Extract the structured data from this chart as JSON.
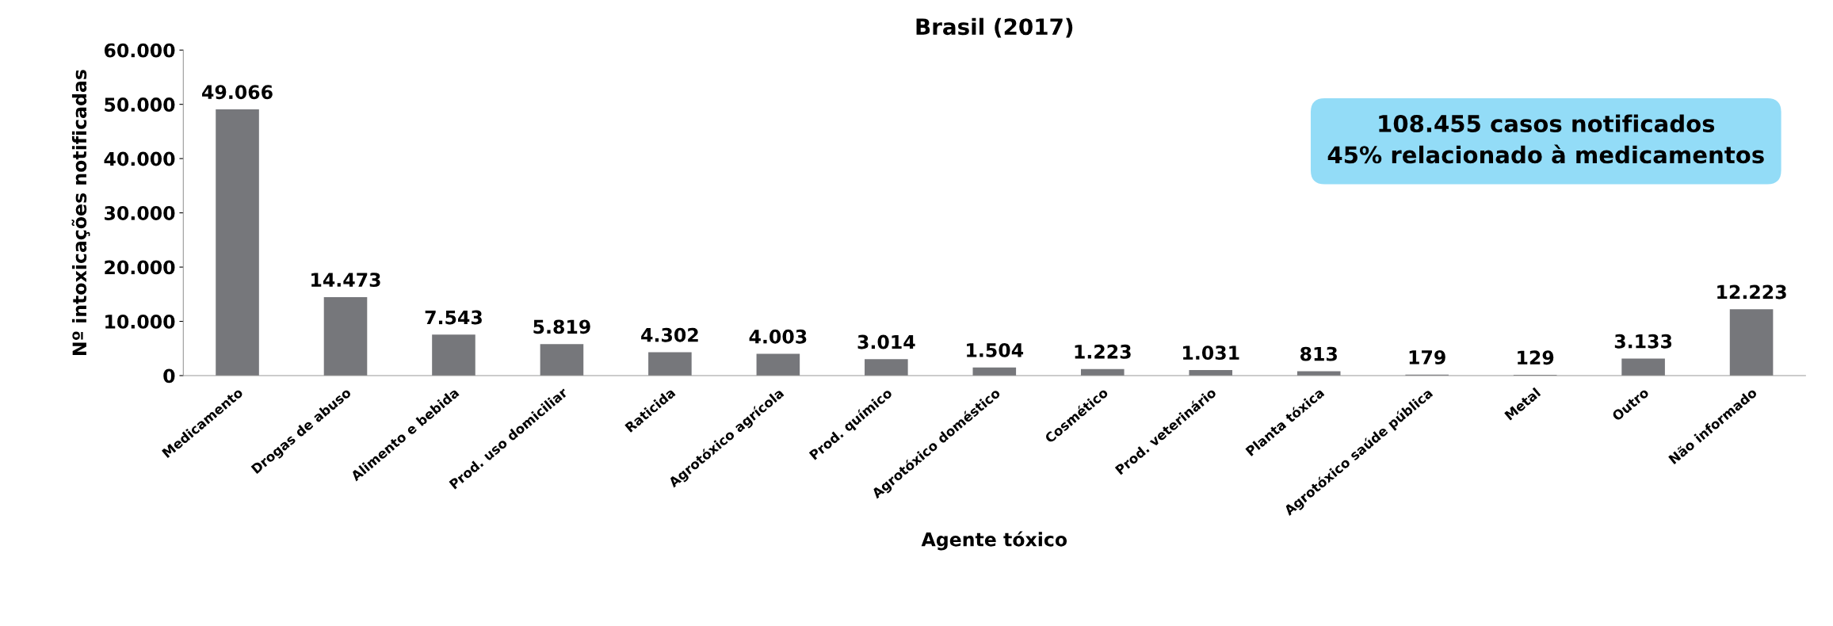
{
  "chart_data": {
    "type": "bar",
    "title": "Brasil (2017)",
    "xlabel": "Agente tóxico",
    "ylabel": "Nº intoxicações notificadas",
    "categories": [
      "Medicamento",
      "Drogas de abuso",
      "Alimento e bebida",
      "Prod. uso domiciliar",
      "Raticida",
      "Agrotóxico agrícola",
      "Prod. químico",
      "Agrotóxico doméstico",
      "Cosmético",
      "Prod. veterinário",
      "Planta tóxica",
      "Agrotóxico saúde pública",
      "Metal",
      "Outro",
      "Não informado"
    ],
    "values": [
      49066,
      14473,
      7543,
      5819,
      4302,
      4003,
      3014,
      1504,
      1223,
      1031,
      813,
      179,
      129,
      3133,
      12223
    ],
    "value_labels": [
      "49.066",
      "14.473",
      "7.543",
      "5.819",
      "4.302",
      "4.003",
      "3.014",
      "1.504",
      "1.223",
      "1.031",
      "813",
      "179",
      "129",
      "3.133",
      "12.223"
    ],
    "color": "#76777b",
    "ylim": [
      0,
      60000
    ],
    "yticks": [
      0,
      {
        "value": 10000,
        "label": "10.000"
      },
      {
        "value": 20000,
        "label": "20.000"
      },
      {
        "value": 30000,
        "label": "30.000"
      },
      {
        "value": 40000,
        "label": "40.000"
      },
      {
        "value": 50000,
        "label": "50.000"
      },
      {
        "value": 60000,
        "label": "60.000"
      }
    ],
    "grid": false,
    "legend": false,
    "annotations": [
      "108.455 casos notificados\n45% relacionado à medicamentos"
    ]
  }
}
